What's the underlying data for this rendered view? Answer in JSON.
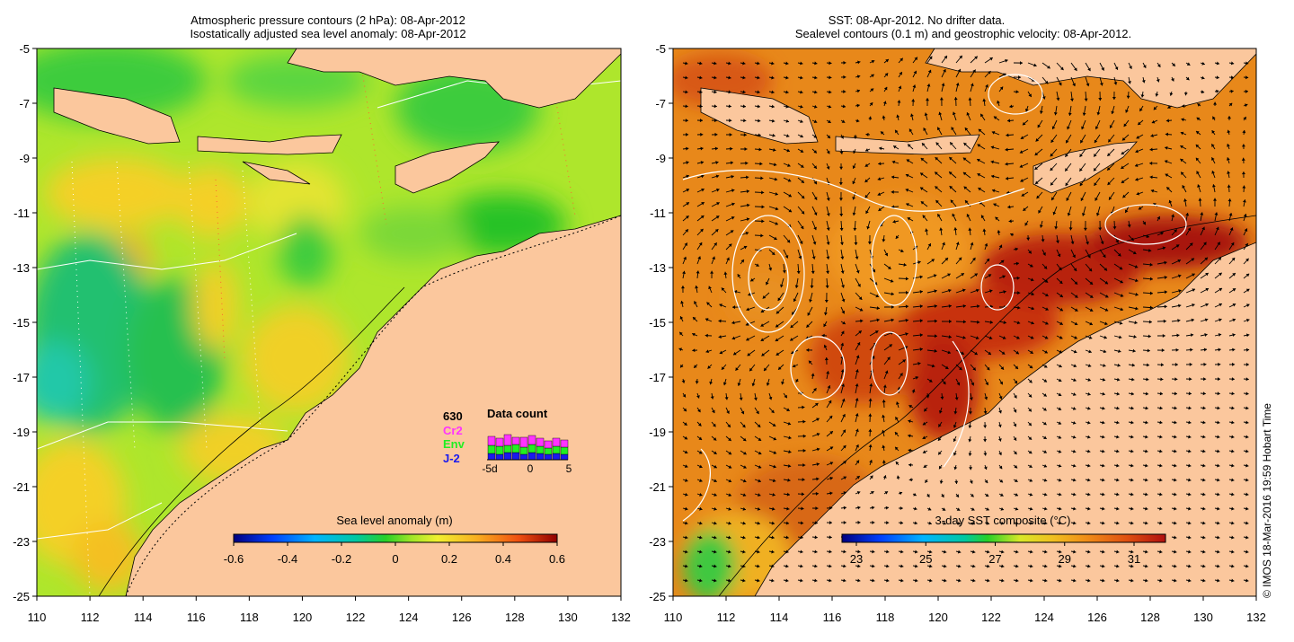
{
  "left_panel": {
    "title_line1": "Atmospheric pressure contours (2 hPa): 08-Apr-2012",
    "title_line2": "Isostatically adjusted sea level anomaly: 08-Apr-2012",
    "colorbar": {
      "title": "Sea level anomaly (m)",
      "ticks": [
        "-0.6",
        "-0.4",
        "-0.2",
        "0",
        "0.2",
        "0.4",
        "0.6"
      ]
    },
    "data_count": {
      "title": "Data count",
      "total": "630",
      "series": [
        "Cr2",
        "Env",
        "J-2"
      ],
      "series_colors": [
        "#ff33ff",
        "#22ee22",
        "#1a1aee"
      ],
      "axis_labels": [
        "-5d",
        "0",
        "5"
      ]
    }
  },
  "right_panel": {
    "title_line1": "SST: 08-Apr-2012. No drifter data.",
    "title_line2": "Sealevel contours (0.1 m) and geostrophic velocity: 08-Apr-2012.",
    "colorbar": {
      "title": "3-day SST composite (°C)",
      "ticks": [
        "23",
        "25",
        "27",
        "29",
        "31"
      ]
    }
  },
  "axes": {
    "x_ticks": [
      "110",
      "112",
      "114",
      "116",
      "118",
      "120",
      "122",
      "124",
      "126",
      "128",
      "130",
      "132"
    ],
    "y_ticks": [
      "-5",
      "-7",
      "-9",
      "-11",
      "-13",
      "-15",
      "-17",
      "-19",
      "-21",
      "-23",
      "-25"
    ]
  },
  "credit": "© IMOS 18-Mar-2016 19:59 Hobart Time",
  "colors": {
    "land": "#fbc79d",
    "ocean_green": "#3ccc3c",
    "ocean_yellow_green": "#aee62c",
    "sst_orange": "#e8881a",
    "sst_red": "#b81a08"
  }
}
